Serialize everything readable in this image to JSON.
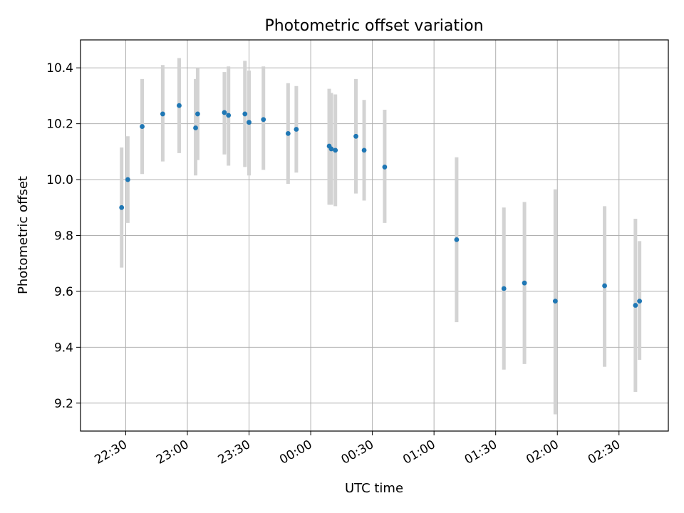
{
  "chart_data": {
    "type": "scatter",
    "title": "Photometric offset variation",
    "xlabel": "UTC time",
    "ylabel": "Photometric offset",
    "grid": true,
    "errorbars": true,
    "colors": {
      "point": "#1f77b4",
      "errorbar": "#d3d3d3",
      "grid": "#b0b0b0"
    },
    "x_unit": "minutes relative to 00:00 UTC",
    "xlim": [
      -112,
      174
    ],
    "ylim": [
      9.1,
      10.5
    ],
    "xticks": [
      {
        "value": -90,
        "label": "22:30"
      },
      {
        "value": -60,
        "label": "23:00"
      },
      {
        "value": -30,
        "label": "23:30"
      },
      {
        "value": 0,
        "label": "00:00"
      },
      {
        "value": 30,
        "label": "00:30"
      },
      {
        "value": 60,
        "label": "01:00"
      },
      {
        "value": 90,
        "label": "01:30"
      },
      {
        "value": 120,
        "label": "02:00"
      },
      {
        "value": 150,
        "label": "02:30"
      }
    ],
    "yticks": [
      {
        "value": 9.2,
        "label": "9.2"
      },
      {
        "value": 9.4,
        "label": "9.4"
      },
      {
        "value": 9.6,
        "label": "9.6"
      },
      {
        "value": 9.8,
        "label": "9.8"
      },
      {
        "value": 10.0,
        "label": "10.0"
      },
      {
        "value": 10.2,
        "label": "10.2"
      },
      {
        "value": 10.4,
        "label": "10.4"
      }
    ],
    "points": [
      {
        "t": "22:28",
        "y": 9.9,
        "err_low": 9.685,
        "err_high": 10.115
      },
      {
        "t": "22:31",
        "y": 10.0,
        "err_low": 9.845,
        "err_high": 10.155
      },
      {
        "t": "22:38",
        "y": 10.19,
        "err_low": 10.02,
        "err_high": 10.36
      },
      {
        "t": "22:48",
        "y": 10.235,
        "err_low": 10.065,
        "err_high": 10.41
      },
      {
        "t": "22:56",
        "y": 10.265,
        "err_low": 10.095,
        "err_high": 10.435
      },
      {
        "t": "23:04",
        "y": 10.185,
        "err_low": 10.015,
        "err_high": 10.36
      },
      {
        "t": "23:05",
        "y": 10.235,
        "err_low": 10.07,
        "err_high": 10.4
      },
      {
        "t": "23:18",
        "y": 10.24,
        "err_low": 10.09,
        "err_high": 10.385
      },
      {
        "t": "23:20",
        "y": 10.23,
        "err_low": 10.05,
        "err_high": 10.405
      },
      {
        "t": "23:28",
        "y": 10.235,
        "err_low": 10.045,
        "err_high": 10.425
      },
      {
        "t": "23:30",
        "y": 10.205,
        "err_low": 10.015,
        "err_high": 10.39
      },
      {
        "t": "23:37",
        "y": 10.215,
        "err_low": 10.035,
        "err_high": 10.405
      },
      {
        "t": "23:49",
        "y": 10.165,
        "err_low": 9.985,
        "err_high": 10.345
      },
      {
        "t": "23:53",
        "y": 10.18,
        "err_low": 10.025,
        "err_high": 10.335
      },
      {
        "t": "00:09",
        "y": 10.12,
        "err_low": 9.91,
        "err_high": 10.325
      },
      {
        "t": "00:10",
        "y": 10.11,
        "err_low": 9.91,
        "err_high": 10.31
      },
      {
        "t": "00:12",
        "y": 10.105,
        "err_low": 9.905,
        "err_high": 10.305
      },
      {
        "t": "00:22",
        "y": 10.155,
        "err_low": 9.95,
        "err_high": 10.36
      },
      {
        "t": "00:26",
        "y": 10.105,
        "err_low": 9.925,
        "err_high": 10.285
      },
      {
        "t": "00:36",
        "y": 10.045,
        "err_low": 9.845,
        "err_high": 10.25
      },
      {
        "t": "01:11",
        "y": 9.785,
        "err_low": 9.49,
        "err_high": 10.08
      },
      {
        "t": "01:34",
        "y": 9.61,
        "err_low": 9.32,
        "err_high": 9.9
      },
      {
        "t": "01:44",
        "y": 9.63,
        "err_low": 9.34,
        "err_high": 9.92
      },
      {
        "t": "01:59",
        "y": 9.565,
        "err_low": 9.16,
        "err_high": 9.965
      },
      {
        "t": "02:23",
        "y": 9.62,
        "err_low": 9.33,
        "err_high": 9.905
      },
      {
        "t": "02:38",
        "y": 9.55,
        "err_low": 9.24,
        "err_high": 9.86
      },
      {
        "t": "02:40",
        "y": 9.565,
        "err_low": 9.355,
        "err_high": 9.78
      }
    ]
  }
}
